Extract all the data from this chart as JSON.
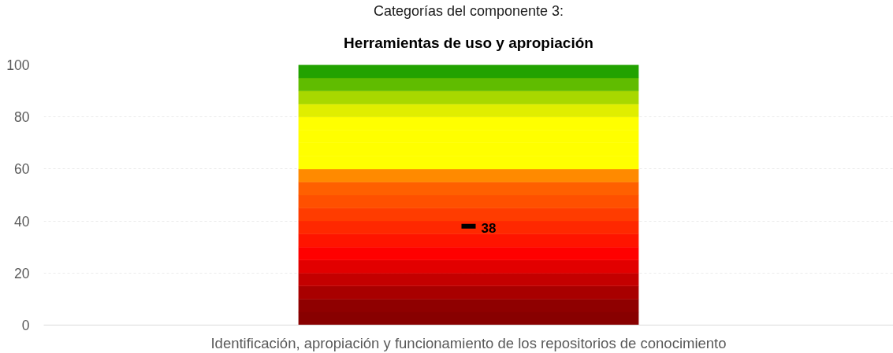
{
  "chart_data": {
    "type": "bar",
    "stacked": true,
    "title": "Categorías del componente 3:",
    "subtitle": "Herramientas de uso y apropiación",
    "categories": [
      "Identificación, apropiación y funcionamiento de los repositorios de conocimiento"
    ],
    "ylim": [
      0,
      100
    ],
    "yticks": [
      0,
      20,
      40,
      60,
      80,
      100
    ],
    "grid": "y",
    "series": [
      {
        "color": "#880000",
        "values": [
          5
        ]
      },
      {
        "color": "#8f0000",
        "values": [
          5
        ]
      },
      {
        "color": "#a80000",
        "values": [
          5
        ]
      },
      {
        "color": "#c40000",
        "values": [
          5
        ]
      },
      {
        "color": "#e20000",
        "values": [
          5
        ]
      },
      {
        "color": "#ff0000",
        "values": [
          5
        ]
      },
      {
        "color": "#ff1400",
        "values": [
          5
        ]
      },
      {
        "color": "#ff2800",
        "values": [
          5
        ]
      },
      {
        "color": "#ff3c00",
        "values": [
          5
        ]
      },
      {
        "color": "#ff5000",
        "values": [
          5
        ]
      },
      {
        "color": "#ff6000",
        "values": [
          5
        ]
      },
      {
        "color": "#ff8a00",
        "values": [
          5
        ]
      },
      {
        "color": "#ffff00",
        "values": [
          5
        ]
      },
      {
        "color": "#ffff00",
        "values": [
          5
        ]
      },
      {
        "color": "#ffff00",
        "values": [
          5
        ]
      },
      {
        "color": "#ffff00",
        "values": [
          5
        ]
      },
      {
        "color": "#e0ee00",
        "values": [
          5
        ]
      },
      {
        "color": "#a8d800",
        "values": [
          5
        ]
      },
      {
        "color": "#60bc00",
        "values": [
          5
        ]
      },
      {
        "color": "#22a200",
        "values": [
          5
        ]
      },
      {
        "type": "scatter",
        "marker": "square",
        "color": "#000000",
        "values": [
          38
        ],
        "value_labels": [
          "38"
        ]
      }
    ]
  }
}
